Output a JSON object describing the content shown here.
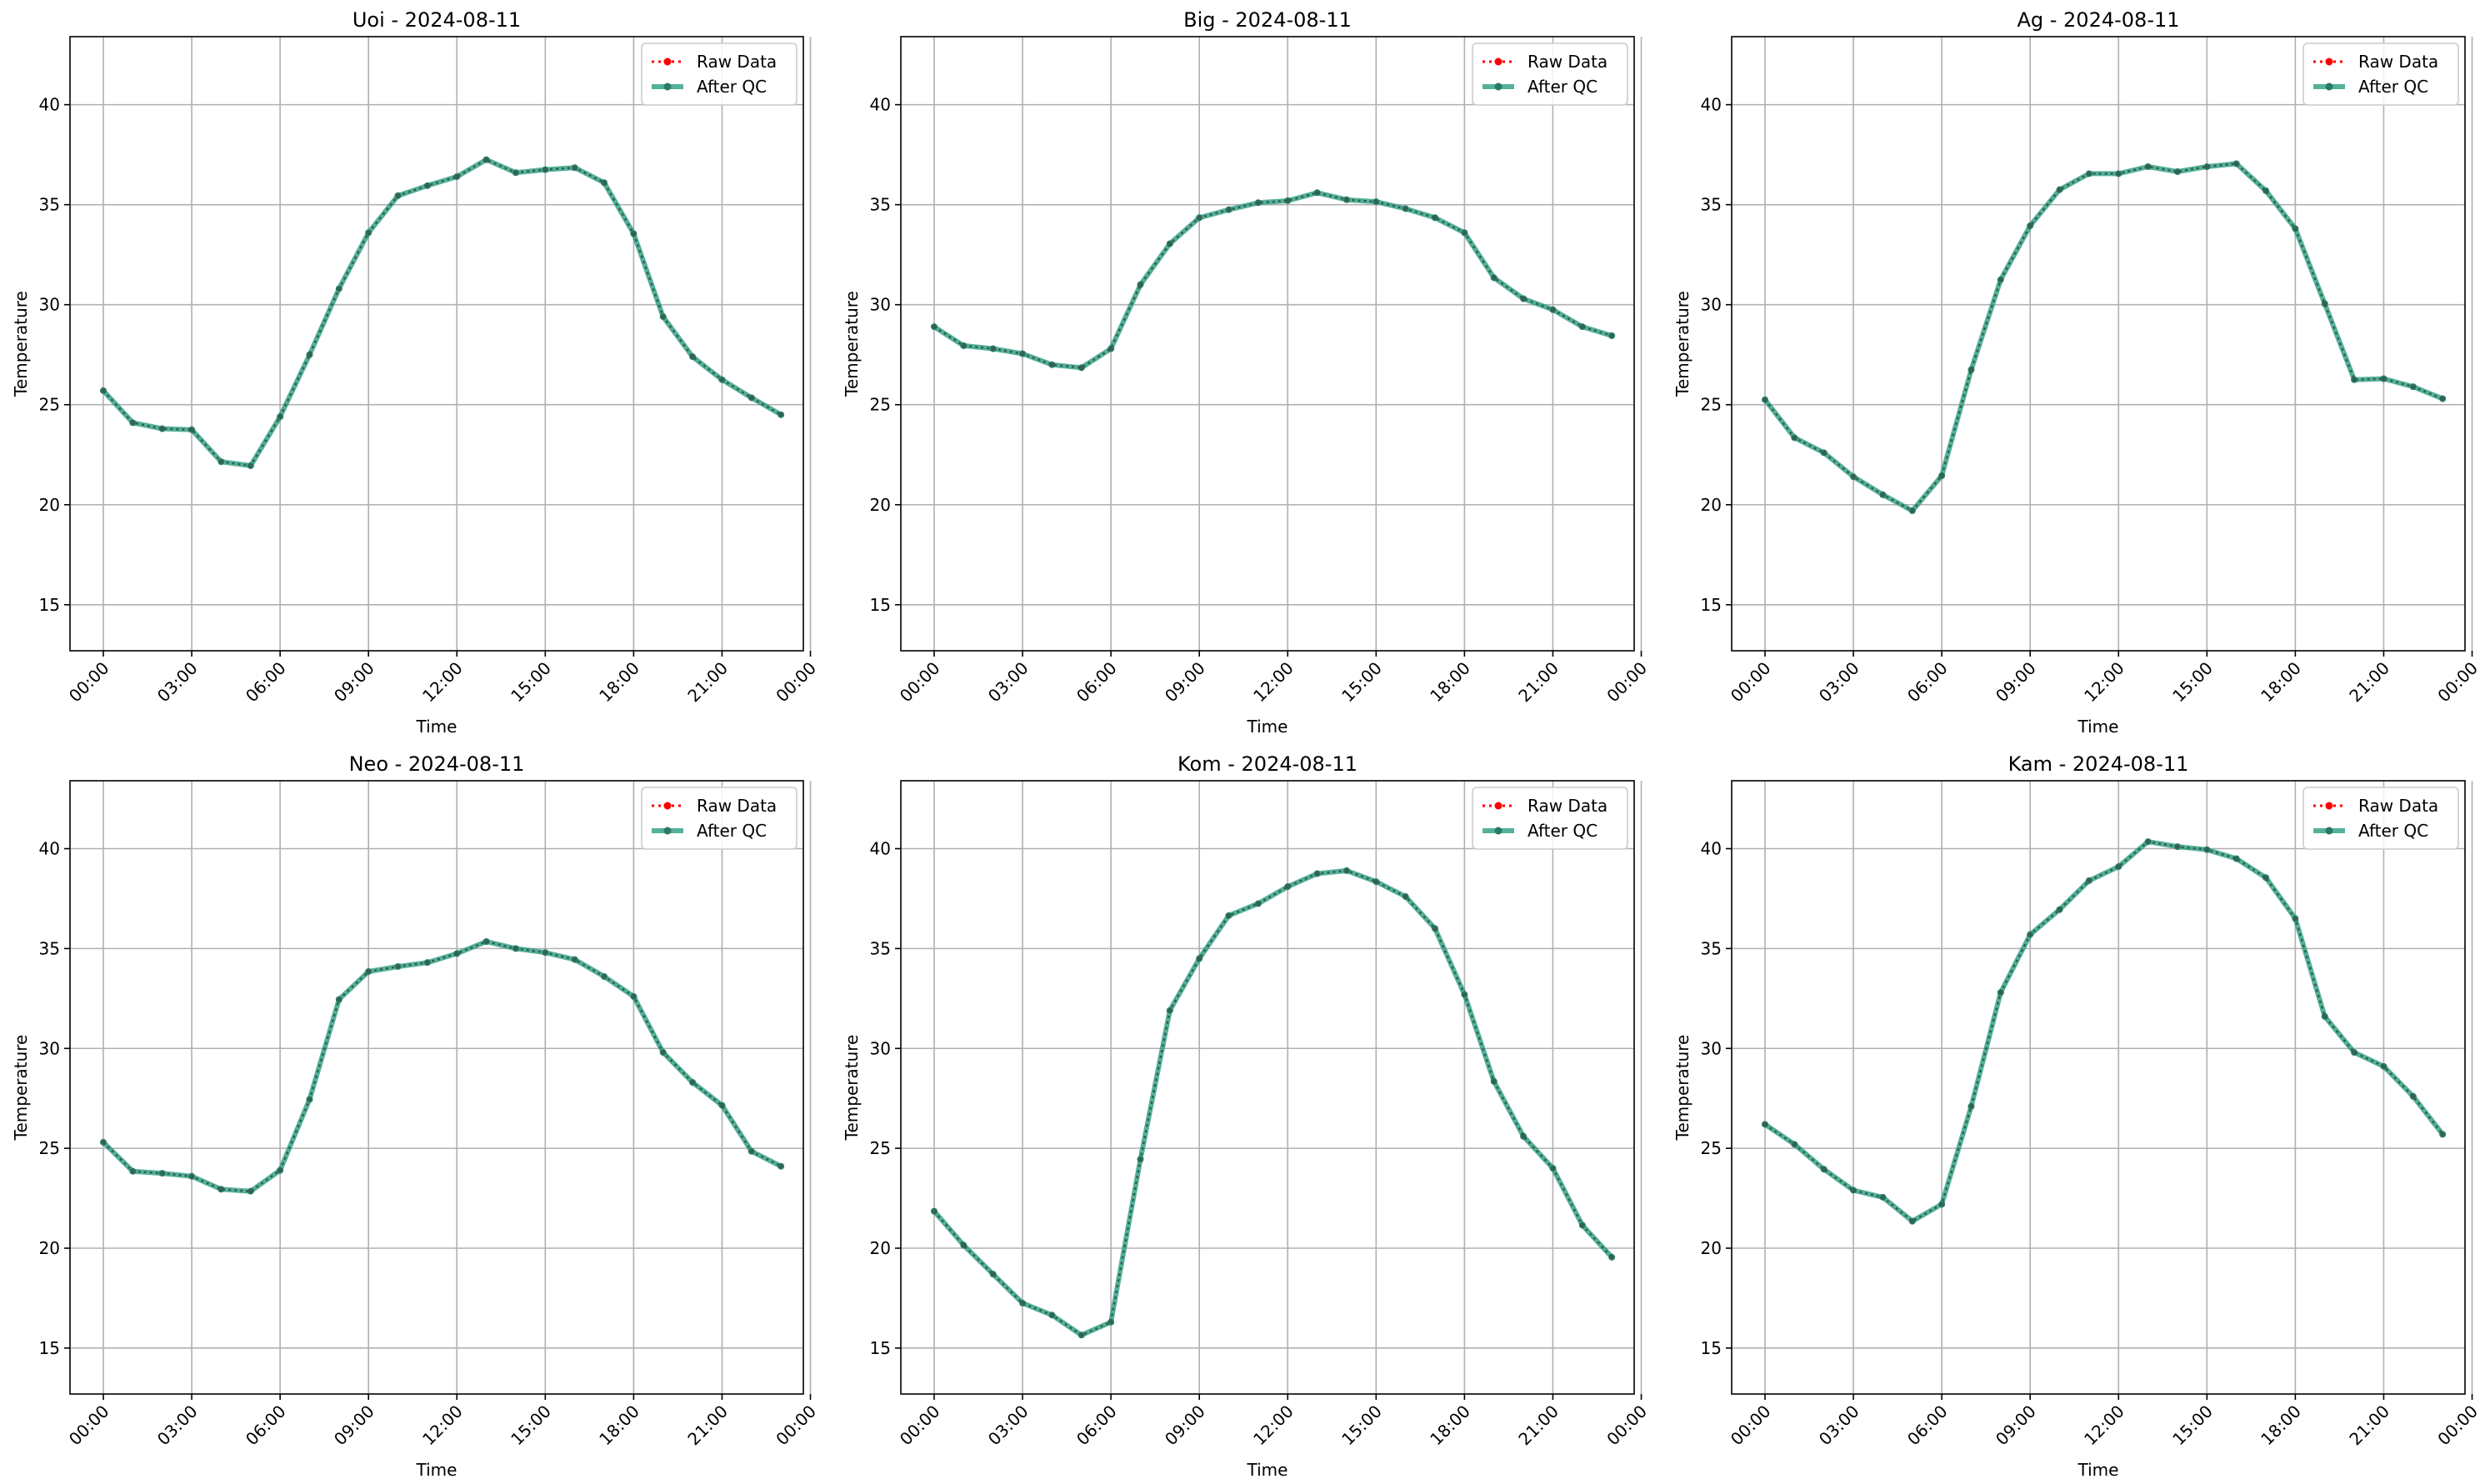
{
  "chart_data": [
    {
      "type": "line",
      "title": "Uoi - 2024-08-11",
      "xlabel": "Time",
      "ylabel": "Temperature",
      "x": [
        "00:00",
        "01:00",
        "02:00",
        "03:00",
        "04:00",
        "05:00",
        "06:00",
        "07:00",
        "08:00",
        "09:00",
        "10:00",
        "11:00",
        "12:00",
        "13:00",
        "14:00",
        "15:00",
        "16:00",
        "17:00",
        "18:00",
        "19:00",
        "20:00",
        "21:00",
        "22:00",
        "23:00"
      ],
      "xticks": [
        "00:00",
        "03:00",
        "06:00",
        "09:00",
        "12:00",
        "15:00",
        "18:00",
        "21:00",
        "00:00"
      ],
      "yticks": [
        15,
        20,
        25,
        30,
        35,
        40
      ],
      "ylim": [
        12.7,
        43.4
      ],
      "grid": true,
      "legend": "top-right",
      "series": [
        {
          "name": "Raw Data",
          "color": "#ff0000",
          "values": [
            25.7,
            24.1,
            23.8,
            23.75,
            22.15,
            21.95,
            24.4,
            27.5,
            30.8,
            33.6,
            35.45,
            35.95,
            36.4,
            37.25,
            36.6,
            36.75,
            36.85,
            36.1,
            33.55,
            29.4,
            27.4,
            26.25,
            25.35,
            24.5
          ]
        },
        {
          "name": "After QC",
          "color": "#2a9d80",
          "values": [
            25.7,
            24.1,
            23.8,
            23.75,
            22.15,
            21.95,
            24.4,
            27.5,
            30.8,
            33.6,
            35.45,
            35.95,
            36.4,
            37.25,
            36.6,
            36.75,
            36.85,
            36.1,
            33.55,
            29.4,
            27.4,
            26.25,
            25.35,
            24.5
          ]
        }
      ]
    },
    {
      "type": "line",
      "title": "Big - 2024-08-11",
      "xlabel": "Time",
      "ylabel": "Temperature",
      "x": [
        "00:00",
        "01:00",
        "02:00",
        "03:00",
        "04:00",
        "05:00",
        "06:00",
        "07:00",
        "08:00",
        "09:00",
        "10:00",
        "11:00",
        "12:00",
        "13:00",
        "14:00",
        "15:00",
        "16:00",
        "17:00",
        "18:00",
        "19:00",
        "20:00",
        "21:00",
        "22:00",
        "23:00"
      ],
      "xticks": [
        "00:00",
        "03:00",
        "06:00",
        "09:00",
        "12:00",
        "15:00",
        "18:00",
        "21:00",
        "00:00"
      ],
      "yticks": [
        15,
        20,
        25,
        30,
        35,
        40
      ],
      "ylim": [
        12.7,
        43.4
      ],
      "grid": true,
      "legend": "top-right",
      "series": [
        {
          "name": "Raw Data",
          "color": "#ff0000",
          "values": [
            28.9,
            27.95,
            27.8,
            27.55,
            27.0,
            26.85,
            27.8,
            31.0,
            33.05,
            34.35,
            34.75,
            35.1,
            35.2,
            35.6,
            35.25,
            35.15,
            34.8,
            34.35,
            33.6,
            31.35,
            30.3,
            29.75,
            28.9,
            28.45
          ]
        },
        {
          "name": "After QC",
          "color": "#2a9d80",
          "values": [
            28.9,
            27.95,
            27.8,
            27.55,
            27.0,
            26.85,
            27.8,
            31.0,
            33.05,
            34.35,
            34.75,
            35.1,
            35.2,
            35.6,
            35.25,
            35.15,
            34.8,
            34.35,
            33.6,
            31.35,
            30.3,
            29.75,
            28.9,
            28.45
          ]
        }
      ]
    },
    {
      "type": "line",
      "title": "Ag - 2024-08-11",
      "xlabel": "Time",
      "ylabel": "Temperature",
      "x": [
        "00:00",
        "01:00",
        "02:00",
        "03:00",
        "04:00",
        "05:00",
        "06:00",
        "07:00",
        "08:00",
        "09:00",
        "10:00",
        "11:00",
        "12:00",
        "13:00",
        "14:00",
        "15:00",
        "16:00",
        "17:00",
        "18:00",
        "19:00",
        "20:00",
        "21:00",
        "22:00",
        "23:00"
      ],
      "xticks": [
        "00:00",
        "03:00",
        "06:00",
        "09:00",
        "12:00",
        "15:00",
        "18:00",
        "21:00",
        "00:00"
      ],
      "yticks": [
        15,
        20,
        25,
        30,
        35,
        40
      ],
      "ylim": [
        12.7,
        43.4
      ],
      "grid": true,
      "legend": "top-right",
      "series": [
        {
          "name": "Raw Data",
          "color": "#ff0000",
          "values": [
            25.25,
            23.35,
            22.6,
            21.4,
            20.5,
            19.7,
            21.45,
            26.75,
            31.25,
            33.95,
            35.75,
            36.55,
            36.55,
            36.9,
            36.65,
            36.9,
            37.05,
            35.7,
            33.8,
            30.05,
            26.25,
            26.3,
            25.9,
            25.3
          ]
        },
        {
          "name": "After QC",
          "color": "#2a9d80",
          "values": [
            25.25,
            23.35,
            22.6,
            21.4,
            20.5,
            19.7,
            21.45,
            26.75,
            31.25,
            33.95,
            35.75,
            36.55,
            36.55,
            36.9,
            36.65,
            36.9,
            37.05,
            35.7,
            33.8,
            30.05,
            26.25,
            26.3,
            25.9,
            25.3
          ]
        }
      ]
    },
    {
      "type": "line",
      "title": "Neo - 2024-08-11",
      "xlabel": "Time",
      "ylabel": "Temperature",
      "x": [
        "00:00",
        "01:00",
        "02:00",
        "03:00",
        "04:00",
        "05:00",
        "06:00",
        "07:00",
        "08:00",
        "09:00",
        "10:00",
        "11:00",
        "12:00",
        "13:00",
        "14:00",
        "15:00",
        "16:00",
        "17:00",
        "18:00",
        "19:00",
        "20:00",
        "21:00",
        "22:00",
        "23:00"
      ],
      "xticks": [
        "00:00",
        "03:00",
        "06:00",
        "09:00",
        "12:00",
        "15:00",
        "18:00",
        "21:00",
        "00:00"
      ],
      "yticks": [
        15,
        20,
        25,
        30,
        35,
        40
      ],
      "ylim": [
        12.7,
        43.4
      ],
      "grid": true,
      "legend": "top-right",
      "series": [
        {
          "name": "Raw Data",
          "color": "#ff0000",
          "values": [
            25.3,
            23.85,
            23.75,
            23.6,
            22.95,
            22.85,
            23.9,
            27.45,
            32.45,
            33.85,
            34.1,
            34.3,
            34.75,
            35.35,
            35.0,
            34.8,
            34.45,
            33.6,
            32.6,
            29.8,
            28.3,
            27.15,
            24.85,
            24.1
          ]
        },
        {
          "name": "After QC",
          "color": "#2a9d80",
          "values": [
            25.3,
            23.85,
            23.75,
            23.6,
            22.95,
            22.85,
            23.9,
            27.45,
            32.45,
            33.85,
            34.1,
            34.3,
            34.75,
            35.35,
            35.0,
            34.8,
            34.45,
            33.6,
            32.6,
            29.8,
            28.3,
            27.15,
            24.85,
            24.1
          ]
        }
      ]
    },
    {
      "type": "line",
      "title": "Kom - 2024-08-11",
      "xlabel": "Time",
      "ylabel": "Temperature",
      "x": [
        "00:00",
        "01:00",
        "02:00",
        "03:00",
        "04:00",
        "05:00",
        "06:00",
        "07:00",
        "08:00",
        "09:00",
        "10:00",
        "11:00",
        "12:00",
        "13:00",
        "14:00",
        "15:00",
        "16:00",
        "17:00",
        "18:00",
        "19:00",
        "20:00",
        "21:00",
        "22:00",
        "23:00"
      ],
      "xticks": [
        "00:00",
        "03:00",
        "06:00",
        "09:00",
        "12:00",
        "15:00",
        "18:00",
        "21:00",
        "00:00"
      ],
      "yticks": [
        15,
        20,
        25,
        30,
        35,
        40
      ],
      "ylim": [
        12.7,
        43.4
      ],
      "grid": true,
      "legend": "top-right",
      "series": [
        {
          "name": "Raw Data",
          "color": "#ff0000",
          "values": [
            21.85,
            20.15,
            18.7,
            17.25,
            16.65,
            15.65,
            16.3,
            24.45,
            31.9,
            34.5,
            36.65,
            37.25,
            38.1,
            38.75,
            38.9,
            38.35,
            37.6,
            36.0,
            32.7,
            28.35,
            25.6,
            24.0,
            21.15,
            19.55
          ]
        },
        {
          "name": "After QC",
          "color": "#2a9d80",
          "values": [
            21.85,
            20.15,
            18.7,
            17.25,
            16.65,
            15.65,
            16.3,
            24.45,
            31.9,
            34.5,
            36.65,
            37.25,
            38.1,
            38.75,
            38.9,
            38.35,
            37.6,
            36.0,
            32.7,
            28.35,
            25.6,
            24.0,
            21.15,
            19.55
          ]
        }
      ]
    },
    {
      "type": "line",
      "title": "Kam - 2024-08-11",
      "xlabel": "Time",
      "ylabel": "Temperature",
      "x": [
        "00:00",
        "01:00",
        "02:00",
        "03:00",
        "04:00",
        "05:00",
        "06:00",
        "07:00",
        "08:00",
        "09:00",
        "10:00",
        "11:00",
        "12:00",
        "13:00",
        "14:00",
        "15:00",
        "16:00",
        "17:00",
        "18:00",
        "19:00",
        "20:00",
        "21:00",
        "22:00",
        "23:00"
      ],
      "xticks": [
        "00:00",
        "03:00",
        "06:00",
        "09:00",
        "12:00",
        "15:00",
        "18:00",
        "21:00",
        "00:00"
      ],
      "yticks": [
        15,
        20,
        25,
        30,
        35,
        40
      ],
      "ylim": [
        12.7,
        43.4
      ],
      "grid": true,
      "legend": "top-right",
      "series": [
        {
          "name": "Raw Data",
          "color": "#ff0000",
          "values": [
            26.2,
            25.2,
            23.95,
            22.9,
            22.55,
            21.35,
            22.2,
            27.1,
            32.8,
            35.7,
            36.95,
            38.4,
            39.1,
            40.35,
            40.1,
            39.95,
            39.5,
            38.55,
            36.5,
            31.6,
            29.8,
            29.1,
            27.6,
            25.7
          ]
        },
        {
          "name": "After QC",
          "color": "#2a9d80",
          "values": [
            26.2,
            25.2,
            23.95,
            22.9,
            22.55,
            21.35,
            22.2,
            27.1,
            32.8,
            35.7,
            36.95,
            38.4,
            39.1,
            40.35,
            40.1,
            39.95,
            39.5,
            38.55,
            36.5,
            31.6,
            29.8,
            29.1,
            27.6,
            25.7
          ]
        }
      ]
    }
  ]
}
